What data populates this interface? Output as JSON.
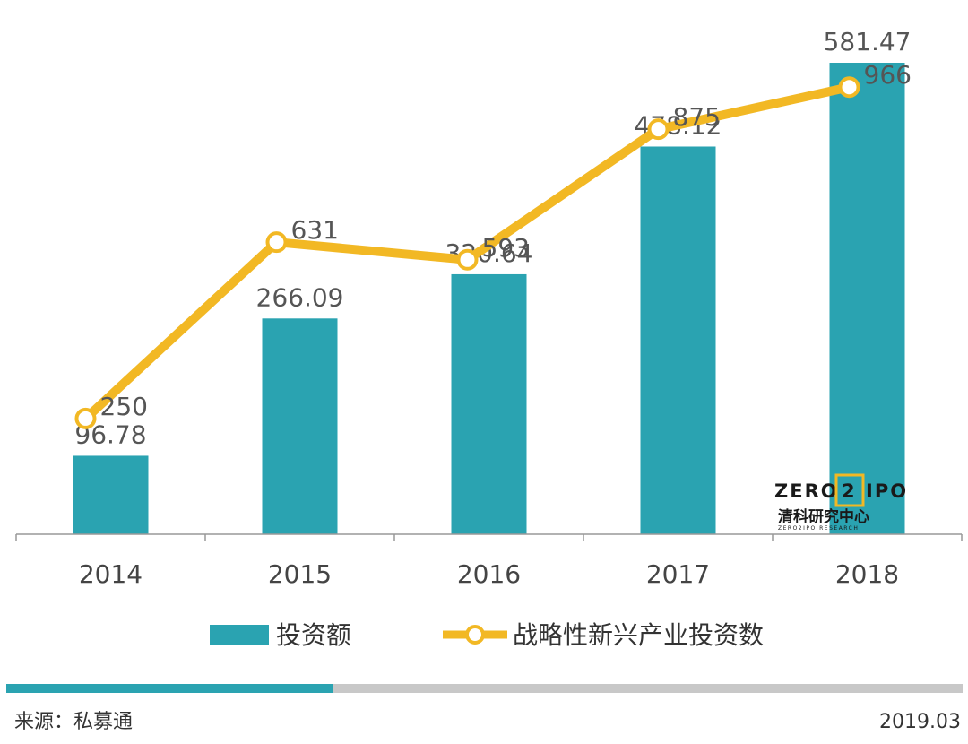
{
  "chart_data": {
    "type": "bar",
    "categories": [
      "2014",
      "2015",
      "2016",
      "2017",
      "2018"
    ],
    "series": [
      {
        "name": "投资额",
        "type": "bar",
        "color": "#2aa3b1",
        "values": [
          96.78,
          266.09,
          320.64,
          478.12,
          581.47
        ]
      },
      {
        "name": "战略性新兴产业投资数",
        "type": "line",
        "color": "#f2b824",
        "values": [
          250,
          631,
          593,
          875,
          966
        ]
      }
    ],
    "bar_axis_range": [
      0,
      581.47
    ],
    "line_axis_range": [
      0,
      1100
    ],
    "legend_position": "bottom",
    "grid": false
  },
  "footer": {
    "source": "来源：私募通",
    "date": "2019.03",
    "bar_colors": [
      "#2aa3b1",
      "#c8c8c8"
    ]
  },
  "logo": {
    "main_left": "ZERO",
    "main_digit": "2",
    "main_right": "IPO",
    "sub": "清科研究中心",
    "tiny": "ZERO2IPO RESEARCH"
  }
}
